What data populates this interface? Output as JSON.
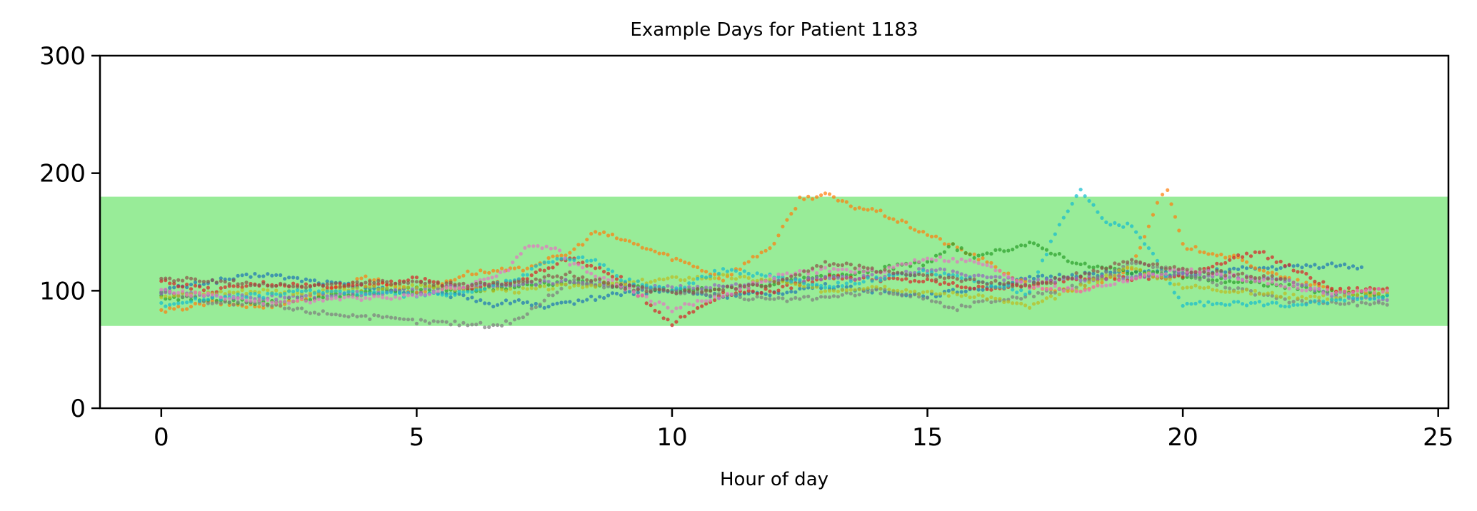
{
  "chart_data": {
    "type": "scatter",
    "title": "Example Days for Patient 1183",
    "xlabel": "Hour of day",
    "ylabel": "",
    "xlim": [
      -1.2,
      25.2
    ],
    "ylim": [
      0,
      300
    ],
    "xticks": [
      "0",
      "5",
      "10",
      "15",
      "20",
      "25"
    ],
    "yticks": [
      "0",
      "100",
      "200",
      "300"
    ],
    "grid": false,
    "target_band": {
      "low": 70,
      "high": 180,
      "color": "#98ec98"
    },
    "series": [
      {
        "color": "#1f77b4",
        "x": [
          0,
          1,
          2,
          3,
          4,
          5,
          6,
          6.5,
          7,
          7.5,
          8,
          9,
          10,
          11,
          12,
          13,
          14,
          15,
          16,
          17,
          18,
          19,
          20,
          21,
          22,
          23,
          23.5
        ],
        "y": [
          100,
          108,
          114,
          108,
          103,
          98,
          95,
          88,
          92,
          85,
          90,
          98,
          100,
          95,
          98,
          104,
          100,
          96,
          102,
          110,
          114,
          116,
          114,
          118,
          120,
          122,
          120
        ]
      },
      {
        "color": "#ff7f0e",
        "x": [
          0,
          1,
          2,
          3,
          4,
          5,
          6,
          7,
          8,
          8.5,
          9,
          10,
          10.5,
          11,
          12,
          12.5,
          13,
          13.5,
          14,
          15,
          15.5,
          16,
          17,
          18,
          19,
          19.5,
          19.7,
          20,
          21,
          22,
          23,
          24
        ],
        "y": [
          82,
          90,
          86,
          95,
          112,
          98,
          115,
          118,
          132,
          150,
          144,
          128,
          120,
          110,
          140,
          178,
          182,
          172,
          168,
          148,
          138,
          128,
          104,
          98,
          120,
          175,
          185,
          138,
          128,
          110,
          100,
          98
        ]
      },
      {
        "color": "#2ca02c",
        "x": [
          0,
          1,
          2,
          3,
          4,
          5,
          6,
          7,
          8,
          9,
          10,
          11,
          12,
          13,
          14,
          15,
          15.5,
          16,
          16.5,
          17,
          17.5,
          18,
          19,
          20,
          21,
          22,
          23,
          24
        ],
        "y": [
          95,
          92,
          90,
          94,
          98,
          102,
          100,
          104,
          108,
          104,
          100,
          102,
          106,
          112,
          118,
          124,
          138,
          128,
          135,
          140,
          132,
          122,
          116,
          112,
          108,
          104,
          98,
          96
        ]
      },
      {
        "color": "#d62728",
        "x": [
          0,
          1,
          2,
          3,
          4,
          5,
          6,
          7,
          8,
          9,
          10,
          11,
          12,
          13,
          14,
          15,
          16,
          17,
          18,
          19,
          20,
          21,
          21.5,
          22,
          23,
          24
        ],
        "y": [
          108,
          100,
          106,
          104,
          105,
          110,
          102,
          108,
          128,
          110,
          72,
          98,
          100,
          112,
          110,
          108,
          102,
          104,
          112,
          110,
          112,
          128,
          133,
          122,
          100,
          102
        ]
      },
      {
        "color": "#9467bd",
        "x": [
          0,
          1,
          2,
          3,
          4,
          5,
          6,
          7,
          8,
          9,
          10,
          11,
          12,
          13,
          14,
          15,
          16,
          17,
          18,
          19,
          20,
          21,
          22,
          23,
          24
        ],
        "y": [
          98,
          96,
          94,
          96,
          98,
          100,
          104,
          106,
          108,
          104,
          102,
          104,
          108,
          110,
          112,
          118,
          112,
          108,
          110,
          112,
          114,
          112,
          108,
          96,
          92
        ]
      },
      {
        "color": "#7f7f7f",
        "x": [
          0,
          1,
          2,
          3,
          4,
          5,
          6,
          6.5,
          7,
          8,
          9,
          10,
          11,
          12,
          13,
          14,
          15,
          15.5,
          16,
          17,
          18,
          19,
          20,
          21,
          22,
          23,
          24
        ],
        "y": [
          100,
          90,
          88,
          82,
          78,
          74,
          72,
          70,
          76,
          108,
          102,
          100,
          96,
          92,
          94,
          100,
          94,
          84,
          90,
          96,
          104,
          124,
          116,
          102,
          92,
          90,
          88
        ]
      },
      {
        "color": "#bcbd22",
        "x": [
          0,
          1,
          2,
          3,
          4,
          5,
          6,
          7,
          8,
          9,
          10,
          11,
          12,
          13,
          14,
          15,
          16,
          17,
          18,
          19,
          20,
          21,
          22,
          23,
          24
        ],
        "y": [
          96,
          98,
          100,
          98,
          102,
          104,
          102,
          100,
          104,
          106,
          110,
          112,
          108,
          100,
          104,
          98,
          96,
          86,
          104,
          120,
          104,
          100,
          96,
          94,
          98
        ]
      },
      {
        "color": "#17becf",
        "x": [
          0,
          1,
          2,
          3,
          4,
          5,
          6,
          7,
          7.5,
          8,
          8.5,
          9,
          10,
          11,
          12,
          13,
          14,
          15,
          16,
          17,
          17.5,
          18,
          18.5,
          19,
          19.5,
          20,
          21,
          22,
          23,
          24
        ],
        "y": [
          88,
          94,
          96,
          100,
          98,
          96,
          98,
          110,
          124,
          128,
          126,
          110,
          100,
          118,
          112,
          104,
          110,
          116,
          108,
          98,
          150,
          186,
          158,
          155,
          125,
          88,
          90,
          88,
          92,
          96
        ]
      },
      {
        "color": "#e377c2",
        "x": [
          0,
          1,
          2,
          3,
          4,
          5,
          6,
          6.8,
          7.2,
          7.8,
          8,
          9,
          10,
          11,
          12,
          13,
          14,
          15,
          16,
          17,
          18,
          19,
          20,
          21,
          22,
          23,
          24
        ],
        "y": [
          100,
          96,
          90,
          92,
          94,
          96,
          104,
          118,
          140,
          135,
          124,
          104,
          84,
          96,
          112,
          118,
          116,
          128,
          124,
          104,
          100,
          110,
          118,
          112,
          104,
          98,
          100
        ]
      },
      {
        "color": "#8c564b",
        "x": [
          0,
          1,
          2,
          3,
          4,
          5,
          6,
          7,
          8,
          9,
          10,
          11,
          12,
          13,
          14,
          15,
          16,
          17,
          18,
          19,
          20,
          21,
          22
        ],
        "y": [
          110,
          108,
          106,
          104,
          106,
          108,
          104,
          108,
          114,
          104,
          98,
          102,
          106,
          124,
          118,
          112,
          108,
          104,
          114,
          126,
          118,
          114,
          110
        ]
      }
    ]
  }
}
